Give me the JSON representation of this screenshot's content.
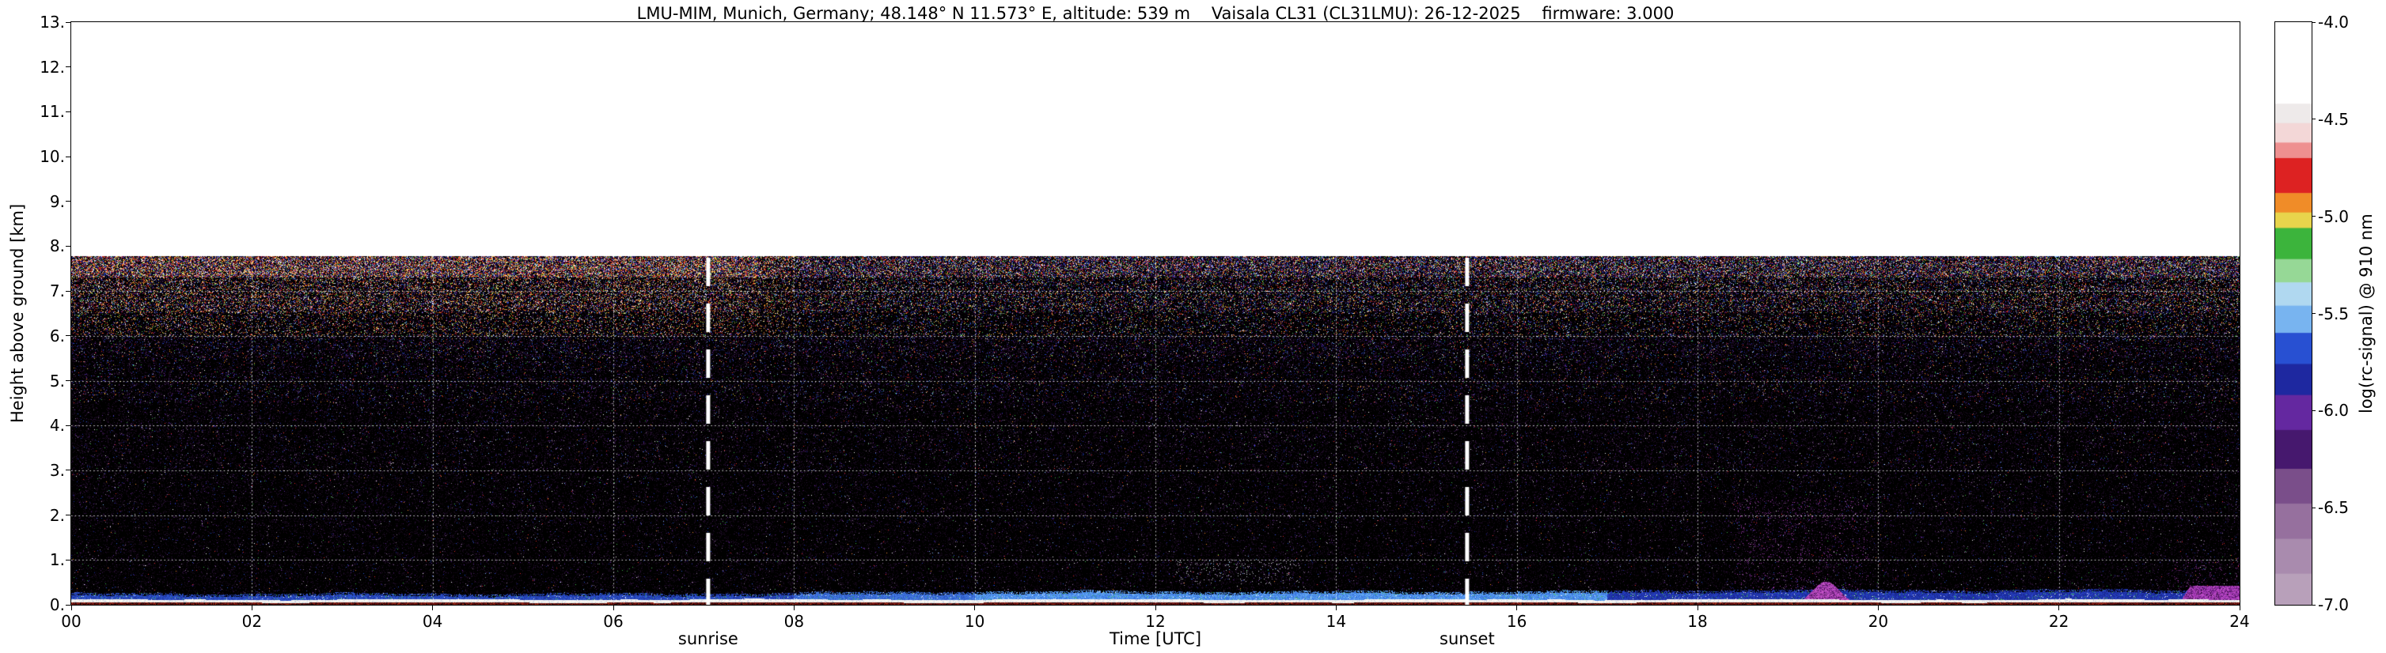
{
  "title": "LMU-MIM, Munich, Germany; 48.148° N 11.573° E, altitude: 539 m    Vaisala CL31 (CL31LMU): 26-12-2025    firmware: 3.000",
  "station": {
    "site": "LMU-MIM, Munich, Germany",
    "latitude": "48.148° N",
    "longitude": "11.573° E",
    "altitude": "539 m",
    "instrument": "Vaisala CL31 (CL31LMU)",
    "date": "26-12-2025",
    "firmware": "3.000"
  },
  "chart_data": {
    "type": "heatmap",
    "title": "LMU-MIM, Munich, Germany; 48.148° N 11.573° E, altitude: 539 m    Vaisala CL31 (CL31LMU): 26-12-2025    firmware: 3.000",
    "xlabel": "Time [UTC]",
    "ylabel": "Height above ground [km]",
    "colorbar_label": "log(rc-signal) @ 910 nm",
    "xlim": [
      0,
      24
    ],
    "ylim": [
      0,
      13
    ],
    "colorbar_range": [
      -7.0,
      -4.0
    ],
    "xticks": [
      "00",
      "02",
      "04",
      "06",
      "08",
      "10",
      "12",
      "14",
      "16",
      "18",
      "20",
      "22",
      "24"
    ],
    "yticks": [
      "13.",
      "12.",
      "11.",
      "10.",
      "9.",
      "8.",
      "7.",
      "6.",
      "5.",
      "4.",
      "3.",
      "2.",
      "1.",
      "0."
    ],
    "colorbar_ticks": [
      "-4.0",
      "-4.5",
      "-5.0",
      "-5.5",
      "-6.0",
      "-6.5",
      "-7.0"
    ],
    "grid": "white dotted; horizontal every 1 km, vertical every 2 h",
    "max_data_height_km": 7.78,
    "annotations": [
      {
        "label": "sunrise",
        "x": 7.05,
        "style": "thick white dashed vertical line"
      },
      {
        "label": "sunset",
        "x": 15.45,
        "style": "thick white dashed vertical line"
      }
    ],
    "colormap": [
      {
        "v0": -4.0,
        "v1": -4.42,
        "color": "#ffffff"
      },
      {
        "v0": -4.42,
        "v1": -4.52,
        "color": "#eeeaea"
      },
      {
        "v0": -4.52,
        "v1": -4.62,
        "color": "#f3d7d7"
      },
      {
        "v0": -4.62,
        "v1": -4.7,
        "color": "#ee9090"
      },
      {
        "v0": -4.7,
        "v1": -4.88,
        "color": "#dd2222"
      },
      {
        "v0": -4.88,
        "v1": -4.98,
        "color": "#f08c28"
      },
      {
        "v0": -4.98,
        "v1": -5.06,
        "color": "#e8d44c"
      },
      {
        "v0": -5.06,
        "v1": -5.22,
        "color": "#3cb43c"
      },
      {
        "v0": -5.22,
        "v1": -5.34,
        "color": "#96d896"
      },
      {
        "v0": -5.34,
        "v1": -5.46,
        "color": "#b0d8f0"
      },
      {
        "v0": -5.46,
        "v1": -5.6,
        "color": "#78b4f0"
      },
      {
        "v0": -5.6,
        "v1": -5.76,
        "color": "#2850d2"
      },
      {
        "v0": -5.76,
        "v1": -5.92,
        "color": "#1e28a0"
      },
      {
        "v0": -5.92,
        "v1": -6.1,
        "color": "#6428a0"
      },
      {
        "v0": -6.1,
        "v1": -6.3,
        "color": "#46186e"
      },
      {
        "v0": -6.3,
        "v1": -6.48,
        "color": "#7a4e8a"
      },
      {
        "v0": -6.48,
        "v1": -6.66,
        "color": "#96709e"
      },
      {
        "v0": -6.66,
        "v1": -6.84,
        "color": "#a98bae"
      },
      {
        "v0": -6.84,
        "v1": -7.0,
        "color": "#b8a0ba"
      }
    ],
    "features": [
      {
        "name": "surface-echo",
        "time_utc": [
          0,
          24
        ],
        "height_km": [
          0.0,
          0.05
        ],
        "appearance": "thin dark red line at ground"
      },
      {
        "name": "overlap-band",
        "time_utc": [
          0,
          24
        ],
        "height_km": [
          0.05,
          0.12
        ],
        "appearance": "bright white wavy band"
      },
      {
        "name": "boundary-layer-aerosol",
        "time_utc": [
          0,
          24
        ],
        "height_km": [
          0.12,
          0.33
        ],
        "appearance": "blue band; brighter light blue 10-17 UTC, deep blue after 17 UTC, signal ~ -5.5 to -5.8"
      },
      {
        "name": "aerosol-plume",
        "time_utc": [
          19.1,
          19.7
        ],
        "height_km": [
          0.1,
          0.5
        ],
        "appearance": "magenta/purple blob with purple speckle halo up to ~2 km"
      },
      {
        "name": "aerosol-plume",
        "time_utc": [
          23.3,
          24.0
        ],
        "height_km": [
          0.1,
          0.45
        ],
        "appearance": "magenta/purple blob at end of day"
      },
      {
        "name": "faint-puff",
        "time_utc": [
          12.2,
          13.6
        ],
        "height_km": [
          0.5,
          1.0
        ],
        "appearance": "very faint light speckle"
      },
      {
        "name": "noise-speckle",
        "time_utc": [
          0,
          24
        ],
        "height_km": [
          0.4,
          7.78
        ],
        "appearance": "black background with colored noise; densest and most colorful near 7.8 km, warmer (red/orange/yellow) before ~08 UTC"
      },
      {
        "name": "no-data",
        "time_utc": [
          0,
          24
        ],
        "height_km": [
          7.78,
          13
        ],
        "appearance": "white"
      }
    ]
  }
}
